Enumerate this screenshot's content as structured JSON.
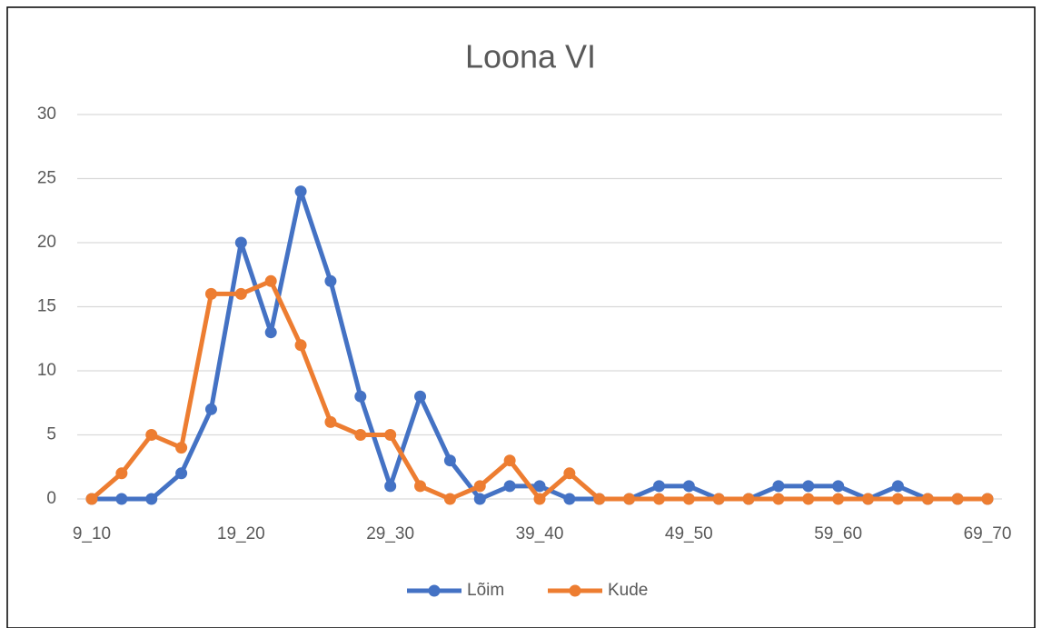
{
  "chart_data": {
    "type": "line",
    "title": "Loona VI",
    "categories": [
      "9_10",
      null,
      null,
      null,
      null,
      "19_20",
      null,
      null,
      null,
      null,
      "29_30",
      null,
      null,
      null,
      null,
      "39_40",
      null,
      null,
      null,
      null,
      "49_50",
      null,
      null,
      null,
      null,
      "59_60",
      null,
      null,
      null,
      null,
      "69_70"
    ],
    "series": [
      {
        "name": "Lõim",
        "color": "#4472c4",
        "values": [
          0,
          0,
          0,
          2,
          7,
          20,
          13,
          24,
          17,
          8,
          1,
          8,
          3,
          0,
          1,
          1,
          0,
          0,
          0,
          1,
          1,
          0,
          0,
          1,
          1,
          1,
          0,
          1,
          0,
          0,
          0
        ]
      },
      {
        "name": "Kude",
        "color": "#ed7d31",
        "values": [
          0,
          2,
          5,
          4,
          16,
          16,
          17,
          12,
          6,
          5,
          5,
          1,
          0,
          1,
          3,
          0,
          2,
          0,
          0,
          0,
          0,
          0,
          0,
          0,
          0,
          0,
          0,
          0,
          0,
          0,
          0
        ]
      }
    ],
    "ylim": [
      0,
      30
    ],
    "yticks": [
      0,
      5,
      10,
      15,
      20,
      25,
      30
    ],
    "grid": true,
    "legend": "bottom"
  }
}
